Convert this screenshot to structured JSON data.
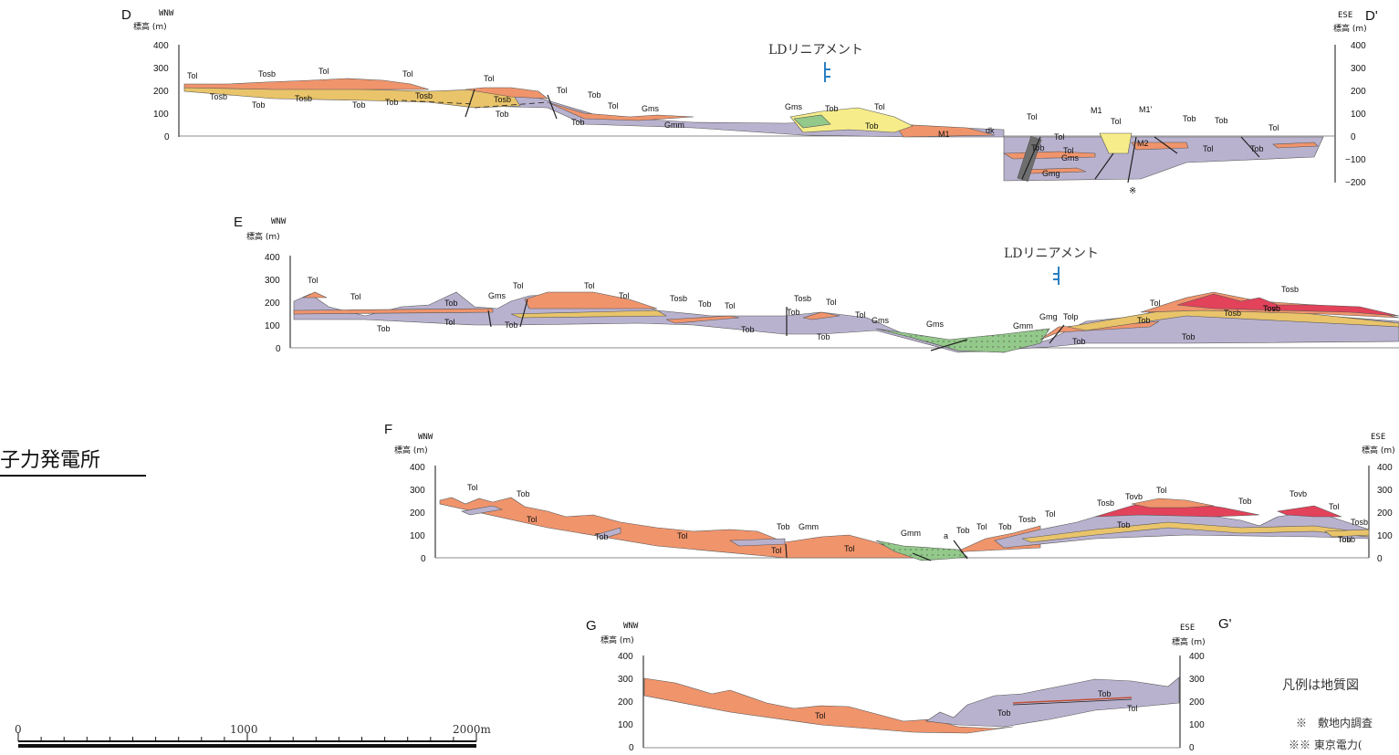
{
  "plant_title": "子力発電所",
  "linear_label": "LDリニアメント",
  "legend_note": "凡例は地質図",
  "footnote_1": "※　敷地内調査",
  "footnote_2": "※※ 東京電力(",
  "asterisk_mark": "※",
  "colors": {
    "Tol": "#f0946c",
    "Tob": "#b9b2cf",
    "Tosb": "#e9c46a",
    "Tovb": "#e2425a",
    "Gms": "#f6ed8a",
    "Gmm": "#93c98a",
    "dk": "#6e6e6e",
    "lineament": "#2a7fc1"
  },
  "scale_bar": {
    "labels": [
      "0",
      "1000",
      "2000m"
    ]
  },
  "sections": {
    "D": {
      "start_label": "D",
      "end_label": "D'",
      "left_dir": "WNW",
      "right_dir": "ESE",
      "axis_unit": "標高 (m)",
      "left_ticks": [
        "400",
        "300",
        "200",
        "100",
        "0"
      ],
      "right_ticks": [
        "400",
        "300",
        "200",
        "100",
        "0",
        "−100",
        "−200"
      ],
      "units": [
        "Tol",
        "Tosb",
        "Tob",
        "Tosb",
        "Tol",
        "Tosb",
        "Tob",
        "Tob",
        "Tol",
        "Tosb",
        "Tol",
        "Tosb",
        "Tob",
        "Tol",
        "Tob",
        "Tob",
        "Tol",
        "Gms",
        "Gmm",
        "Gms",
        "Tob",
        "Tol",
        "Tob",
        "M1",
        "dk",
        "Tol",
        "Tob",
        "Tol",
        "Tol",
        "Gms",
        "Gmg",
        "M1",
        "Tol",
        "M1'",
        "M2",
        "Tob",
        "Tob",
        "Tol",
        "Tob",
        "Tol"
      ]
    },
    "E": {
      "start_label": "E",
      "left_dir": "WNW",
      "axis_unit": "標高 (m)",
      "left_ticks": [
        "400",
        "300",
        "200",
        "100",
        "0"
      ],
      "units": [
        "Tol",
        "Tol",
        "Tob",
        "Tol",
        "Gms",
        "Tol",
        "Tob",
        "Tol",
        "Tol",
        "Tob",
        "Tosb",
        "Tob",
        "Tol",
        "Tob",
        "Tosb",
        "Tol",
        "Tob",
        "Tob",
        "Tol",
        "Gms",
        "Gms",
        "Gmm",
        "Gmg",
        "Tolp",
        "Tob",
        "Tol",
        "Tob",
        "Tosb",
        "Tob",
        "Tosb",
        "Tovb",
        "Tosb"
      ]
    },
    "F": {
      "start_label": "F",
      "left_dir": "WNW",
      "right_dir": "ESE",
      "axis_unit": "標高 (m)",
      "left_ticks": [
        "400",
        "300",
        "200",
        "100",
        "0"
      ],
      "right_ticks": [
        "400",
        "300",
        "200",
        "100",
        "0"
      ],
      "units": [
        "Tol",
        "Tob",
        "Tol",
        "Tob",
        "Tol",
        "Tob",
        "Gmm",
        "Tol",
        "Tol",
        "Gmm",
        "a",
        "Tob",
        "Tol",
        "Tob",
        "Tosb",
        "Tol",
        "Tob",
        "Tosb",
        "Tovb",
        "Tol",
        "Tob",
        "Tovb",
        "Tol",
        "Tosb",
        "Tob",
        "Tosb"
      ]
    },
    "G": {
      "start_label": "G",
      "end_label": "G'",
      "left_dir": "WNW",
      "right_dir": "ESE",
      "axis_unit": "標高 (m)",
      "left_ticks": [
        "400",
        "300",
        "200",
        "100",
        "0"
      ],
      "right_ticks": [
        "400",
        "300",
        "200",
        "100",
        "0"
      ],
      "units": [
        "Tol",
        "Tob",
        "Tob",
        "Tol"
      ]
    }
  }
}
